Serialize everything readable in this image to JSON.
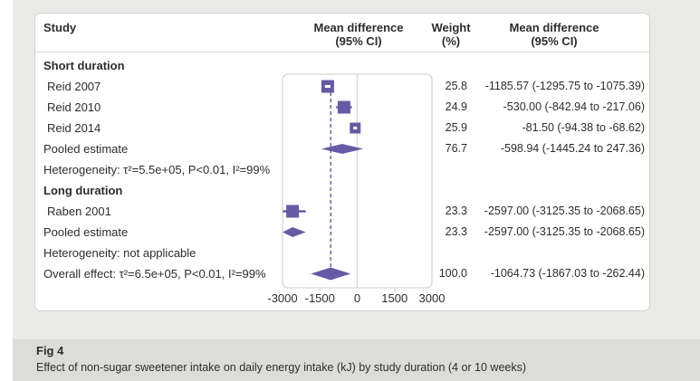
{
  "colors": {
    "accent_purple": "#675aa5",
    "zero_line_gray": "#d9d9d7",
    "frame_gray": "#d6d6d4",
    "page_bg": "#eaeae8",
    "caption_band_bg": "#dcdcda",
    "text": "#2d2d2b"
  },
  "header": {
    "study": "Study",
    "plot_col_line1": "Mean difference",
    "plot_col_line2": "(95% CI)",
    "weight_line1": "Weight",
    "weight_line2": "(%)",
    "md_col_line1": "Mean difference",
    "md_col_line2": "(95% CI)"
  },
  "caption": {
    "label": "Fig 4",
    "text": "Effect of non-sugar sweetener intake on daily energy intake (kJ) by study duration (4 or 10 weeks)"
  },
  "chart_data": {
    "type": "scatter",
    "variant": "forest-plot",
    "xlim": [
      -3000,
      3000
    ],
    "x_ticks": [
      -3000,
      -1500,
      0,
      1500,
      3000
    ],
    "zero_line": 0,
    "overall_line": -1064.73,
    "rows": [
      {
        "kind": "group",
        "label": "Short duration"
      },
      {
        "kind": "study",
        "label": "Reid 2007",
        "weight": "25.8",
        "md_text": "-1185.57 (-1295.75 to -1075.39)",
        "estimate": -1185.57,
        "ci_low": -1295.75,
        "ci_high": -1075.39,
        "marker": "square",
        "size": 14
      },
      {
        "kind": "study",
        "label": "Reid 2010",
        "weight": "24.9",
        "md_text": "-530.00 (-842.94 to -217.06)",
        "estimate": -530.0,
        "ci_low": -842.94,
        "ci_high": -217.06,
        "marker": "square",
        "size": 14
      },
      {
        "kind": "study",
        "label": "Reid 2014",
        "weight": "25.9",
        "md_text": "-81.50 (-94.38 to -68.62)",
        "estimate": -81.5,
        "ci_low": -94.38,
        "ci_high": -68.62,
        "marker": "square",
        "size": 12
      },
      {
        "kind": "pooled",
        "label": "Pooled estimate",
        "weight": "76.7",
        "md_text": "-598.94 (-1445.24 to 247.36)",
        "estimate": -598.94,
        "ci_low": -1445.24,
        "ci_high": 247.36,
        "marker": "diamond"
      },
      {
        "kind": "note",
        "label": "Heterogeneity: τ²=5.5e+05, P<0.01, I²=99%"
      },
      {
        "kind": "group",
        "label": "Long duration"
      },
      {
        "kind": "study",
        "label": "Raben 2001",
        "weight": "23.3",
        "md_text": "-2597.00 (-3125.35 to -2068.65)",
        "estimate": -2597.0,
        "ci_low": -3125.35,
        "ci_high": -2068.65,
        "marker": "square",
        "size": 14
      },
      {
        "kind": "pooled",
        "label": "Pooled estimate",
        "weight": "23.3",
        "md_text": "-2597.00 (-3125.35 to -2068.65)",
        "estimate": -2597.0,
        "ci_low": -3125.35,
        "ci_high": -2068.65,
        "marker": "diamond"
      },
      {
        "kind": "note",
        "label": "Heterogeneity: not applicable"
      },
      {
        "kind": "overall",
        "label": "Overall effect: τ²=6.5e+05, P<0.01, I²=99%",
        "weight": "100.0",
        "md_text": "-1064.73 (-1867.03 to -262.44)",
        "estimate": -1064.73,
        "ci_low": -1867.03,
        "ci_high": -262.44,
        "marker": "diamond"
      }
    ]
  }
}
